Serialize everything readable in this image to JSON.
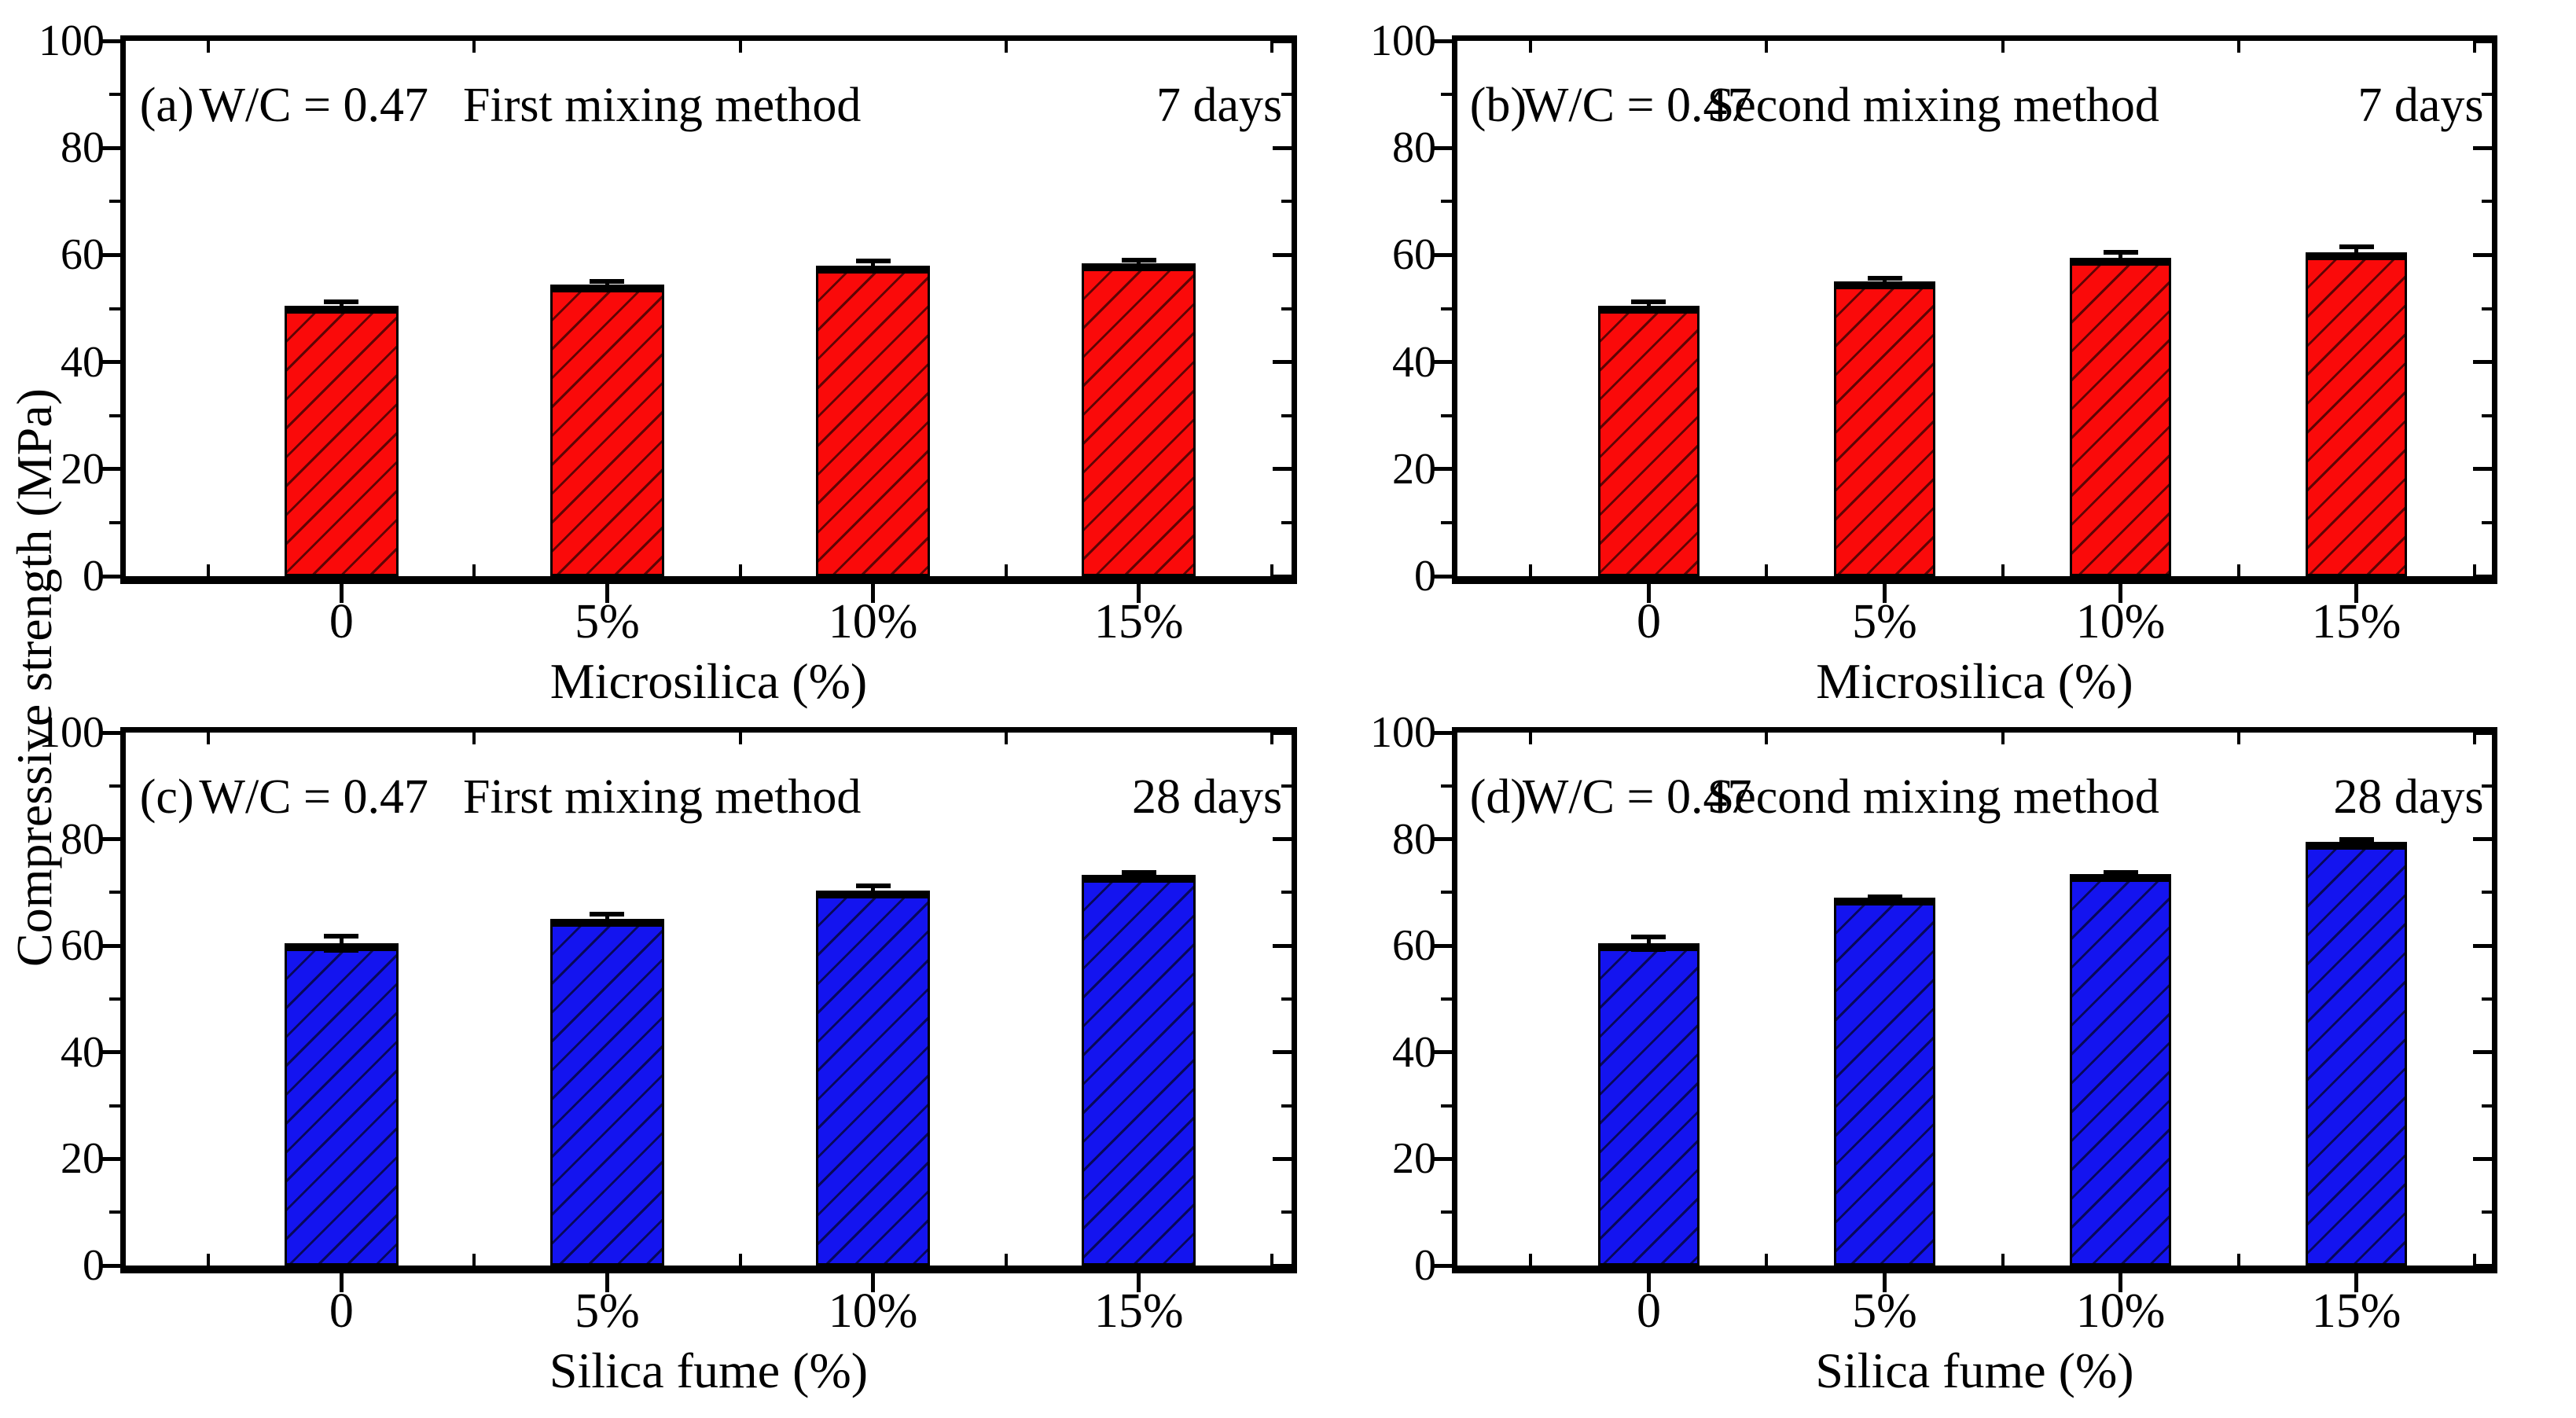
{
  "figure": {
    "y_axis_label": "Compressive strength (MPa)"
  },
  "chart_data": {
    "type": "bar",
    "title": "",
    "ylabel": "Compressive strength (MPa)",
    "grid": false,
    "legend": false,
    "panels": [
      {
        "tag": "(a)",
        "wc_label": "W/C = 0.47",
        "method_label": "First mixing method",
        "age_label": "7 days",
        "xlabel": "Microsilica (%)",
        "categories": [
          "0",
          "5%",
          "10%",
          "15%"
        ],
        "values": [
          50.5,
          54.5,
          58.0,
          58.5
        ],
        "errors": [
          0.7,
          0.5,
          0.9,
          0.6
        ],
        "bar_color": "#fa0a0a",
        "hatch": "diagonal",
        "ylim": [
          0,
          100
        ],
        "yticks_major": [
          0,
          20,
          40,
          60,
          80,
          100
        ],
        "yticks_minor": [
          10,
          30,
          50,
          70,
          90
        ]
      },
      {
        "tag": "(b)",
        "wc_label": "W/C = 0.47",
        "method_label": "Second mixing method",
        "age_label": "7 days",
        "xlabel": "Microsilica (%)",
        "categories": [
          "0",
          "5%",
          "10%",
          "15%"
        ],
        "values": [
          50.5,
          55.0,
          59.5,
          60.5
        ],
        "errors": [
          0.8,
          0.7,
          1.0,
          1.0
        ],
        "bar_color": "#fa0a0a",
        "hatch": "diagonal",
        "ylim": [
          0,
          100
        ],
        "yticks_major": [
          0,
          20,
          40,
          60,
          80,
          100
        ],
        "yticks_minor": [
          10,
          30,
          50,
          70,
          90
        ]
      },
      {
        "tag": "(c)",
        "wc_label": "W/C = 0.47",
        "method_label": "First mixing method",
        "age_label": "28 days",
        "xlabel": "Silica fume (%)",
        "categories": [
          "0",
          "5%",
          "10%",
          "15%"
        ],
        "values": [
          60.5,
          65.0,
          70.3,
          73.3
        ],
        "errors": [
          1.3,
          0.9,
          0.9,
          0.5
        ],
        "bar_color": "#1414ef",
        "hatch": "diagonal",
        "ylim": [
          0,
          100
        ],
        "yticks_major": [
          0,
          20,
          40,
          60,
          80,
          100
        ],
        "yticks_minor": [
          10,
          30,
          50,
          70,
          90
        ]
      },
      {
        "tag": "(d)",
        "wc_label": "W/C = 0.47",
        "method_label": "Second mixing method",
        "age_label": "28 days",
        "xlabel": "Silica fume (%)",
        "categories": [
          "0",
          "5%",
          "10%",
          "15%"
        ],
        "values": [
          60.5,
          69.0,
          73.5,
          79.5
        ],
        "errors": [
          1.2,
          0.2,
          0.3,
          0.5
        ],
        "bar_color": "#1414ef",
        "hatch": "diagonal",
        "ylim": [
          0,
          100
        ],
        "yticks_major": [
          0,
          20,
          40,
          60,
          80,
          100
        ],
        "yticks_minor": [
          10,
          30,
          50,
          70,
          90
        ]
      }
    ]
  }
}
